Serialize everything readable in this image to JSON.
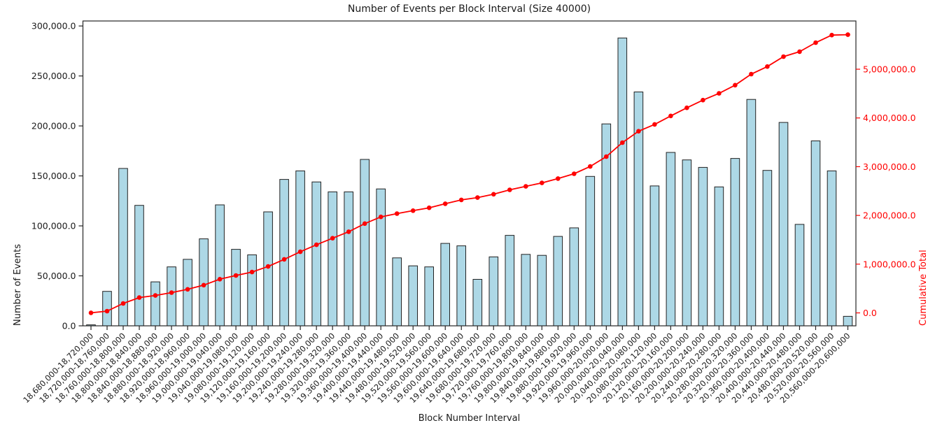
{
  "figure": {
    "title": "Number of Events per Block Interval (Size 40000)",
    "xlabel": "Block Number Interval",
    "ylabel_left": "Number of Events",
    "ylabel_right": "Cumulative Total"
  },
  "chart_data": {
    "type": "bar",
    "title": "Number of Events per Block Interval (Size 40000)",
    "xlabel": "Block Number Interval",
    "ylabel": "Number of Events",
    "ylabel_right": "Cumulative Total",
    "grid": false,
    "legend_position": "none",
    "bar_color": "#ADD8E6",
    "bar_edge_color": "#222222",
    "line_color": "#ff0000",
    "axis_color": "#262626",
    "right_axis_color": "#ff0000",
    "categories": [
      "18,680,000-18,720,000",
      "18,720,000-18,760,000",
      "18,760,000-18,800,000",
      "18,800,000-18,840,000",
      "18,840,000-18,880,000",
      "18,880,000-18,920,000",
      "18,920,000-18,960,000",
      "18,960,000-19,000,000",
      "19,000,000-19,040,000",
      "19,040,000-19,080,000",
      "19,080,000-19,120,000",
      "19,120,000-19,160,000",
      "19,160,000-19,200,000",
      "19,200,000-19,240,000",
      "19,240,000-19,280,000",
      "19,280,000-19,320,000",
      "19,320,000-19,360,000",
      "19,360,000-19,400,000",
      "19,400,000-19,440,000",
      "19,440,000-19,480,000",
      "19,480,000-19,520,000",
      "19,520,000-19,560,000",
      "19,560,000-19,600,000",
      "19,600,000-19,640,000",
      "19,640,000-19,680,000",
      "19,680,000-19,720,000",
      "19,720,000-19,760,000",
      "19,760,000-19,800,000",
      "19,800,000-19,840,000",
      "19,840,000-19,880,000",
      "19,880,000-19,920,000",
      "19,920,000-19,960,000",
      "19,960,000-20,000,000",
      "20,000,000-20,040,000",
      "20,040,000-20,080,000",
      "20,080,000-20,120,000",
      "20,120,000-20,160,000",
      "20,160,000-20,200,000",
      "20,200,000-20,240,000",
      "20,240,000-20,280,000",
      "20,280,000-20,320,000",
      "20,320,000-20,360,000",
      "20,360,000-20,400,000",
      "20,400,000-20,440,000",
      "20,440,000-20,480,000",
      "20,480,000-20,520,000",
      "20,520,000-20,560,000",
      "20,560,000-20,600,000"
    ],
    "series": [
      {
        "name": "Number of Events",
        "type": "bar",
        "axis": "left",
        "values": [
          1000,
          34500,
          157500,
          120500,
          44000,
          59000,
          66500,
          87000,
          121000,
          76500,
          71000,
          114000,
          146500,
          155000,
          144000,
          134000,
          134000,
          166500,
          137000,
          68000,
          60000,
          59000,
          82500,
          80000,
          46500,
          69000,
          90500,
          71500,
          70500,
          89500,
          98000,
          149500,
          202000,
          288000,
          234000,
          140000,
          173500,
          166000,
          158500,
          139000,
          167500,
          226500,
          155500,
          203500,
          101500,
          185000,
          155000,
          9500
        ]
      },
      {
        "name": "Cumulative Total",
        "type": "line",
        "marker": "circle",
        "axis": "right",
        "values": [
          1000,
          35500,
          193000,
          313500,
          357500,
          416500,
          483000,
          570000,
          691000,
          767500,
          838500,
          952500,
          1099000,
          1254000,
          1398000,
          1532000,
          1666000,
          1832500,
          1969500,
          2037500,
          2097500,
          2156500,
          2239000,
          2319000,
          2365500,
          2434500,
          2525000,
          2596500,
          2667000,
          2756500,
          2854500,
          3004000,
          3206000,
          3494000,
          3728000,
          3868000,
          4041500,
          4207500,
          4366000,
          4505000,
          4672500,
          4899000,
          5054500,
          5258000,
          5359500,
          5544500,
          5699500,
          5709000
        ]
      }
    ],
    "left_axis": {
      "range": [
        0,
        305000
      ],
      "ticks": [
        0,
        50000,
        100000,
        150000,
        200000,
        250000,
        300000
      ],
      "tick_labels": [
        "0.0",
        "50,000.0",
        "100,000.0",
        "150,000.0",
        "200,000.0",
        "250,000.0",
        "300,000.0"
      ]
    },
    "right_axis": {
      "ticks": [
        0,
        1000000,
        2000000,
        3000000,
        4000000,
        5000000
      ],
      "tick_labels": [
        "0.0",
        "1,000,000.0",
        "2,000,000.0",
        "3,000,000.0",
        "4,000,000.0",
        "5,000,000.0"
      ]
    }
  }
}
